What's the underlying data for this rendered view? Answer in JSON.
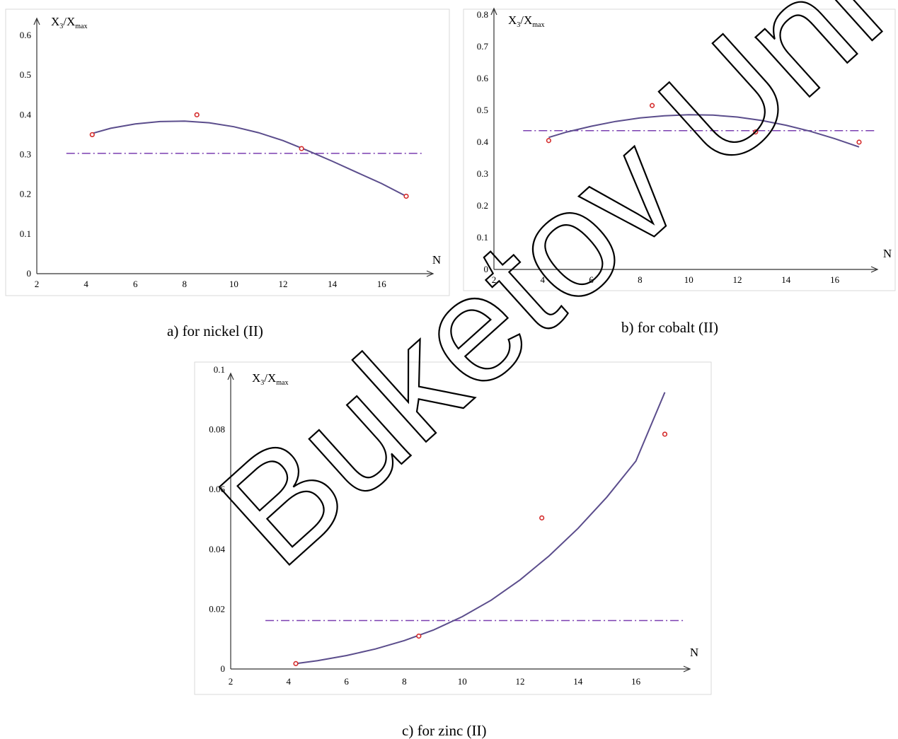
{
  "watermark": "Buketov Univ",
  "chart_data": [
    {
      "type": "scatter",
      "caption": "a) for nickel (II)",
      "ylabel": {
        "main": "X",
        "sub1": "3",
        "mid": "/X",
        "sub2": "max"
      },
      "xlabel": "N",
      "xlim": [
        2,
        18
      ],
      "ylim": [
        0,
        0.65
      ],
      "xticks": [
        2,
        4,
        6,
        8,
        10,
        12,
        14,
        16
      ],
      "yticks": [
        0,
        0.1,
        0.2,
        0.3,
        0.4,
        0.5,
        0.6
      ],
      "points": [
        {
          "x": 4.25,
          "y": 0.35
        },
        {
          "x": 8.5,
          "y": 0.4
        },
        {
          "x": 12.75,
          "y": 0.315
        },
        {
          "x": 17.0,
          "y": 0.195
        }
      ],
      "trend": {
        "type": "polynomial",
        "x": [
          4.25,
          5,
          6,
          7,
          8,
          9,
          10,
          11,
          12,
          13,
          14,
          15,
          16,
          17
        ],
        "y": [
          0.353,
          0.366,
          0.377,
          0.383,
          0.384,
          0.38,
          0.37,
          0.355,
          0.335,
          0.31,
          0.283,
          0.255,
          0.227,
          0.195
        ]
      },
      "mean_line": {
        "y": 0.303,
        "x": [
          3.2,
          17.7
        ]
      }
    },
    {
      "type": "scatter",
      "caption": "b) for cobalt (II)",
      "ylabel": {
        "main": "X",
        "sub1": "3",
        "mid": "/X",
        "sub2": "max"
      },
      "xlabel": "N",
      "xlim": [
        2,
        18
      ],
      "ylim": [
        0,
        0.8
      ],
      "xticks": [
        2,
        4,
        6,
        8,
        10,
        12,
        14,
        16
      ],
      "yticks": [
        0,
        0.1,
        0.2,
        0.3,
        0.4,
        0.5,
        0.6,
        0.7,
        0.8
      ],
      "points": [
        {
          "x": 4.25,
          "y": 0.405
        },
        {
          "x": 8.5,
          "y": 0.515
        },
        {
          "x": 12.75,
          "y": 0.432
        },
        {
          "x": 17.0,
          "y": 0.4
        }
      ],
      "trend": {
        "type": "polynomial",
        "x": [
          4.25,
          5,
          6,
          7,
          8,
          9,
          10,
          11,
          12,
          13,
          14,
          15,
          16,
          17
        ],
        "y": [
          0.415,
          0.432,
          0.45,
          0.465,
          0.476,
          0.483,
          0.486,
          0.485,
          0.479,
          0.468,
          0.453,
          0.434,
          0.411,
          0.385
        ]
      },
      "mean_line": {
        "y": 0.436,
        "x": [
          3.2,
          17.7
        ]
      }
    },
    {
      "type": "scatter",
      "caption": "c) for zinc (II)",
      "ylabel": {
        "main": "X",
        "sub1": "3",
        "mid": "/X",
        "sub2": "max"
      },
      "xlabel": "N",
      "xlim": [
        2,
        18
      ],
      "ylim": [
        0,
        0.1
      ],
      "xticks": [
        2,
        4,
        6,
        8,
        10,
        12,
        14,
        16
      ],
      "yticks": [
        "0",
        "0.02",
        "0.04",
        "0.06",
        "0.08",
        "0.1"
      ],
      "yticks_num": [
        0,
        0.02,
        0.04,
        0.06,
        0.08,
        0.1
      ],
      "points": [
        {
          "x": 4.25,
          "y": 0.0018
        },
        {
          "x": 8.5,
          "y": 0.011
        },
        {
          "x": 12.75,
          "y": 0.0505
        },
        {
          "x": 17.0,
          "y": 0.0785
        }
      ],
      "trend": {
        "type": "polynomial",
        "x": [
          4.25,
          5,
          6,
          7,
          8,
          9,
          10,
          11,
          12,
          13,
          14,
          15,
          16,
          17
        ],
        "y": [
          0.0018,
          0.0028,
          0.0045,
          0.0067,
          0.0095,
          0.013,
          0.0175,
          0.023,
          0.0298,
          0.0378,
          0.047,
          0.0575,
          0.0695,
          0.0925
        ]
      },
      "mean_line": {
        "y": 0.0162,
        "x": [
          3.2,
          17.7
        ]
      }
    }
  ]
}
